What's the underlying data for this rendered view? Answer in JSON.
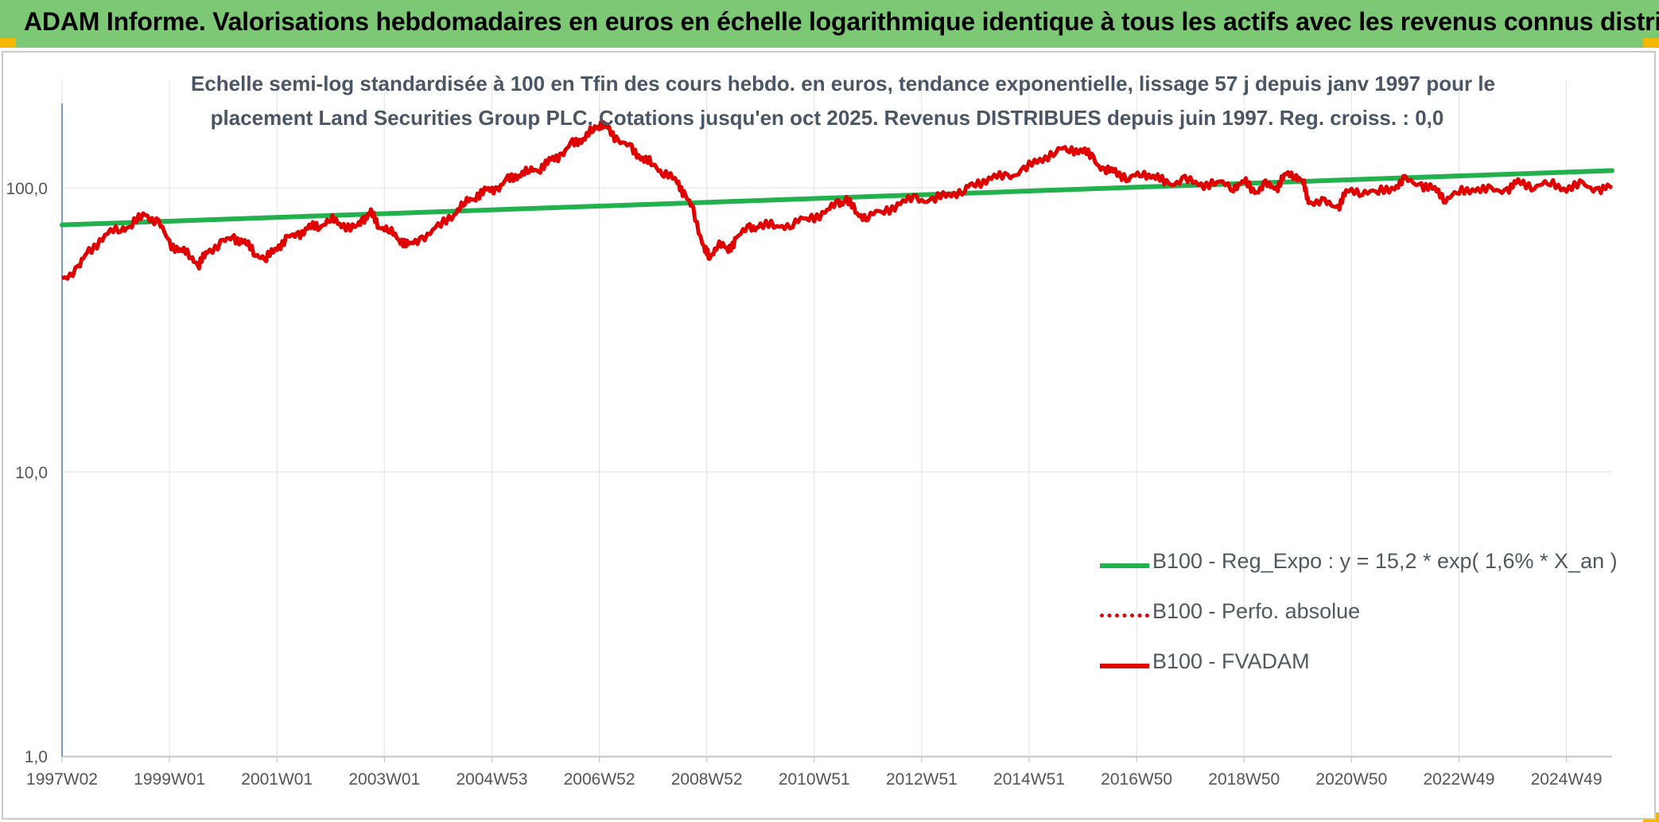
{
  "banner": {
    "title": "ADAM Informe. Valorisations hebdomadaires en euros en échelle logarithmique identique à tous les actifs avec les revenus connus distribués"
  },
  "chart_data": {
    "type": "line",
    "title_line1": "Echelle semi-log standardisée à 100 en Tfin des cours hebdo. en euros, tendance exponentielle, lissage 57 j depuis janv 1997 pour le",
    "title_line2": "placement Land Securities Group PLC. Cotations jusqu'en oct 2025. Revenus DISTRIBUES depuis juin 1997. Reg. croiss. : 0,0",
    "y_scale": "log",
    "ylim": [
      1,
      200
    ],
    "y_ticks": [
      {
        "value": 100,
        "label": "100,0"
      },
      {
        "value": 10,
        "label": "10,0"
      },
      {
        "value": 1,
        "label": "1,0"
      }
    ],
    "x_range": [
      1997.0,
      2025.85
    ],
    "x_ticks": [
      {
        "x": 1997.0,
        "label": "1997W02"
      },
      {
        "x": 1999.0,
        "label": "1999W01"
      },
      {
        "x": 2001.0,
        "label": "2001W01"
      },
      {
        "x": 2003.0,
        "label": "2003W01"
      },
      {
        "x": 2005.0,
        "label": "2004W53"
      },
      {
        "x": 2007.0,
        "label": "2006W52"
      },
      {
        "x": 2009.0,
        "label": "2008W52"
      },
      {
        "x": 2011.0,
        "label": "2010W51"
      },
      {
        "x": 2013.0,
        "label": "2012W51"
      },
      {
        "x": 2015.0,
        "label": "2014W51"
      },
      {
        "x": 2017.0,
        "label": "2016W50"
      },
      {
        "x": 2019.0,
        "label": "2018W50"
      },
      {
        "x": 2021.0,
        "label": "2020W50"
      },
      {
        "x": 2023.0,
        "label": "2022W49"
      },
      {
        "x": 2025.0,
        "label": "2024W49"
      }
    ],
    "grid": "vertical and horizontal",
    "legend_position": "bottom-right",
    "series": [
      {
        "name": "B100 - Reg_Expo : y = 15,2 * exp( 1,6% *  X_an )",
        "color": "#22b14c",
        "style": "solid",
        "points": [
          [
            1997.0,
            74
          ],
          [
            2025.85,
            115
          ]
        ]
      },
      {
        "name": "B100 - Perfo. absolue",
        "color": "#e00000",
        "style": "dotted",
        "points": []
      },
      {
        "name": "B100 - FVADAM",
        "color": "#e00000",
        "style": "solid",
        "points": [
          [
            1997.0,
            48
          ],
          [
            1997.3,
            52
          ],
          [
            1997.5,
            60
          ],
          [
            1997.8,
            68
          ],
          [
            1998.1,
            72
          ],
          [
            1998.3,
            74
          ],
          [
            1998.55,
            81
          ],
          [
            1998.8,
            75
          ],
          [
            1999.0,
            64
          ],
          [
            1999.2,
            60
          ],
          [
            1999.4,
            58
          ],
          [
            1999.55,
            53
          ],
          [
            1999.7,
            60
          ],
          [
            2000.0,
            64
          ],
          [
            2000.2,
            67
          ],
          [
            2000.4,
            64
          ],
          [
            2000.6,
            59
          ],
          [
            2000.8,
            56
          ],
          [
            2001.0,
            62
          ],
          [
            2001.2,
            66
          ],
          [
            2001.4,
            69
          ],
          [
            2001.6,
            72
          ],
          [
            2001.8,
            74
          ],
          [
            2002.0,
            77
          ],
          [
            2002.2,
            75
          ],
          [
            2002.45,
            71
          ],
          [
            2002.6,
            78
          ],
          [
            2002.75,
            81
          ],
          [
            2002.9,
            74
          ],
          [
            2003.1,
            70
          ],
          [
            2003.3,
            66
          ],
          [
            2003.45,
            62
          ],
          [
            2003.7,
            67
          ],
          [
            2004.0,
            72
          ],
          [
            2004.3,
            82
          ],
          [
            2004.5,
            88
          ],
          [
            2004.7,
            94
          ],
          [
            2004.9,
            97
          ],
          [
            2005.1,
            100
          ],
          [
            2005.3,
            106
          ],
          [
            2005.5,
            112
          ],
          [
            2005.7,
            114
          ],
          [
            2005.9,
            118
          ],
          [
            2006.1,
            124
          ],
          [
            2006.3,
            132
          ],
          [
            2006.5,
            142
          ],
          [
            2006.7,
            150
          ],
          [
            2006.9,
            160
          ],
          [
            2007.0,
            168
          ],
          [
            2007.15,
            162
          ],
          [
            2007.35,
            148
          ],
          [
            2007.6,
            136
          ],
          [
            2007.8,
            128
          ],
          [
            2008.0,
            120
          ],
          [
            2008.2,
            114
          ],
          [
            2008.45,
            104
          ],
          [
            2008.6,
            95
          ],
          [
            2008.75,
            82
          ],
          [
            2008.95,
            62
          ],
          [
            2009.05,
            56
          ],
          [
            2009.2,
            64
          ],
          [
            2009.4,
            60
          ],
          [
            2009.55,
            67
          ],
          [
            2009.8,
            72
          ],
          [
            2010.0,
            74
          ],
          [
            2010.3,
            73
          ],
          [
            2010.6,
            75
          ],
          [
            2010.9,
            78
          ],
          [
            2011.2,
            82
          ],
          [
            2011.45,
            88
          ],
          [
            2011.6,
            91
          ],
          [
            2011.8,
            81
          ],
          [
            2012.0,
            79
          ],
          [
            2012.3,
            83
          ],
          [
            2012.6,
            88
          ],
          [
            2012.9,
            92
          ],
          [
            2013.2,
            90
          ],
          [
            2013.5,
            95
          ],
          [
            2013.8,
            98
          ],
          [
            2014.0,
            104
          ],
          [
            2014.3,
            108
          ],
          [
            2014.6,
            110
          ],
          [
            2014.9,
            115
          ],
          [
            2015.2,
            126
          ],
          [
            2015.5,
            134
          ],
          [
            2015.75,
            138
          ],
          [
            2016.0,
            134
          ],
          [
            2016.2,
            128
          ],
          [
            2016.4,
            113
          ],
          [
            2016.6,
            116
          ],
          [
            2016.85,
            106
          ],
          [
            2017.1,
            114
          ],
          [
            2017.35,
            108
          ],
          [
            2017.6,
            104
          ],
          [
            2017.9,
            106
          ],
          [
            2018.2,
            103
          ],
          [
            2018.5,
            104
          ],
          [
            2018.8,
            101
          ],
          [
            2019.0,
            105
          ],
          [
            2019.2,
            97
          ],
          [
            2019.4,
            102
          ],
          [
            2019.6,
            100
          ],
          [
            2019.75,
            110
          ],
          [
            2019.95,
            112
          ],
          [
            2020.1,
            104
          ],
          [
            2020.2,
            90
          ],
          [
            2020.5,
            88
          ],
          [
            2020.75,
            86
          ],
          [
            2020.9,
            96
          ],
          [
            2021.2,
            98
          ],
          [
            2021.5,
            96
          ],
          [
            2021.8,
            101
          ],
          [
            2022.0,
            106
          ],
          [
            2022.3,
            103
          ],
          [
            2022.55,
            98
          ],
          [
            2022.75,
            92
          ],
          [
            2023.0,
            96
          ],
          [
            2023.3,
            100
          ],
          [
            2023.6,
            97
          ],
          [
            2023.9,
            99
          ],
          [
            2024.1,
            104
          ],
          [
            2024.4,
            102
          ],
          [
            2024.7,
            103
          ],
          [
            2025.0,
            100
          ],
          [
            2025.3,
            102
          ],
          [
            2025.6,
            99
          ],
          [
            2025.85,
            100
          ]
        ]
      }
    ]
  }
}
